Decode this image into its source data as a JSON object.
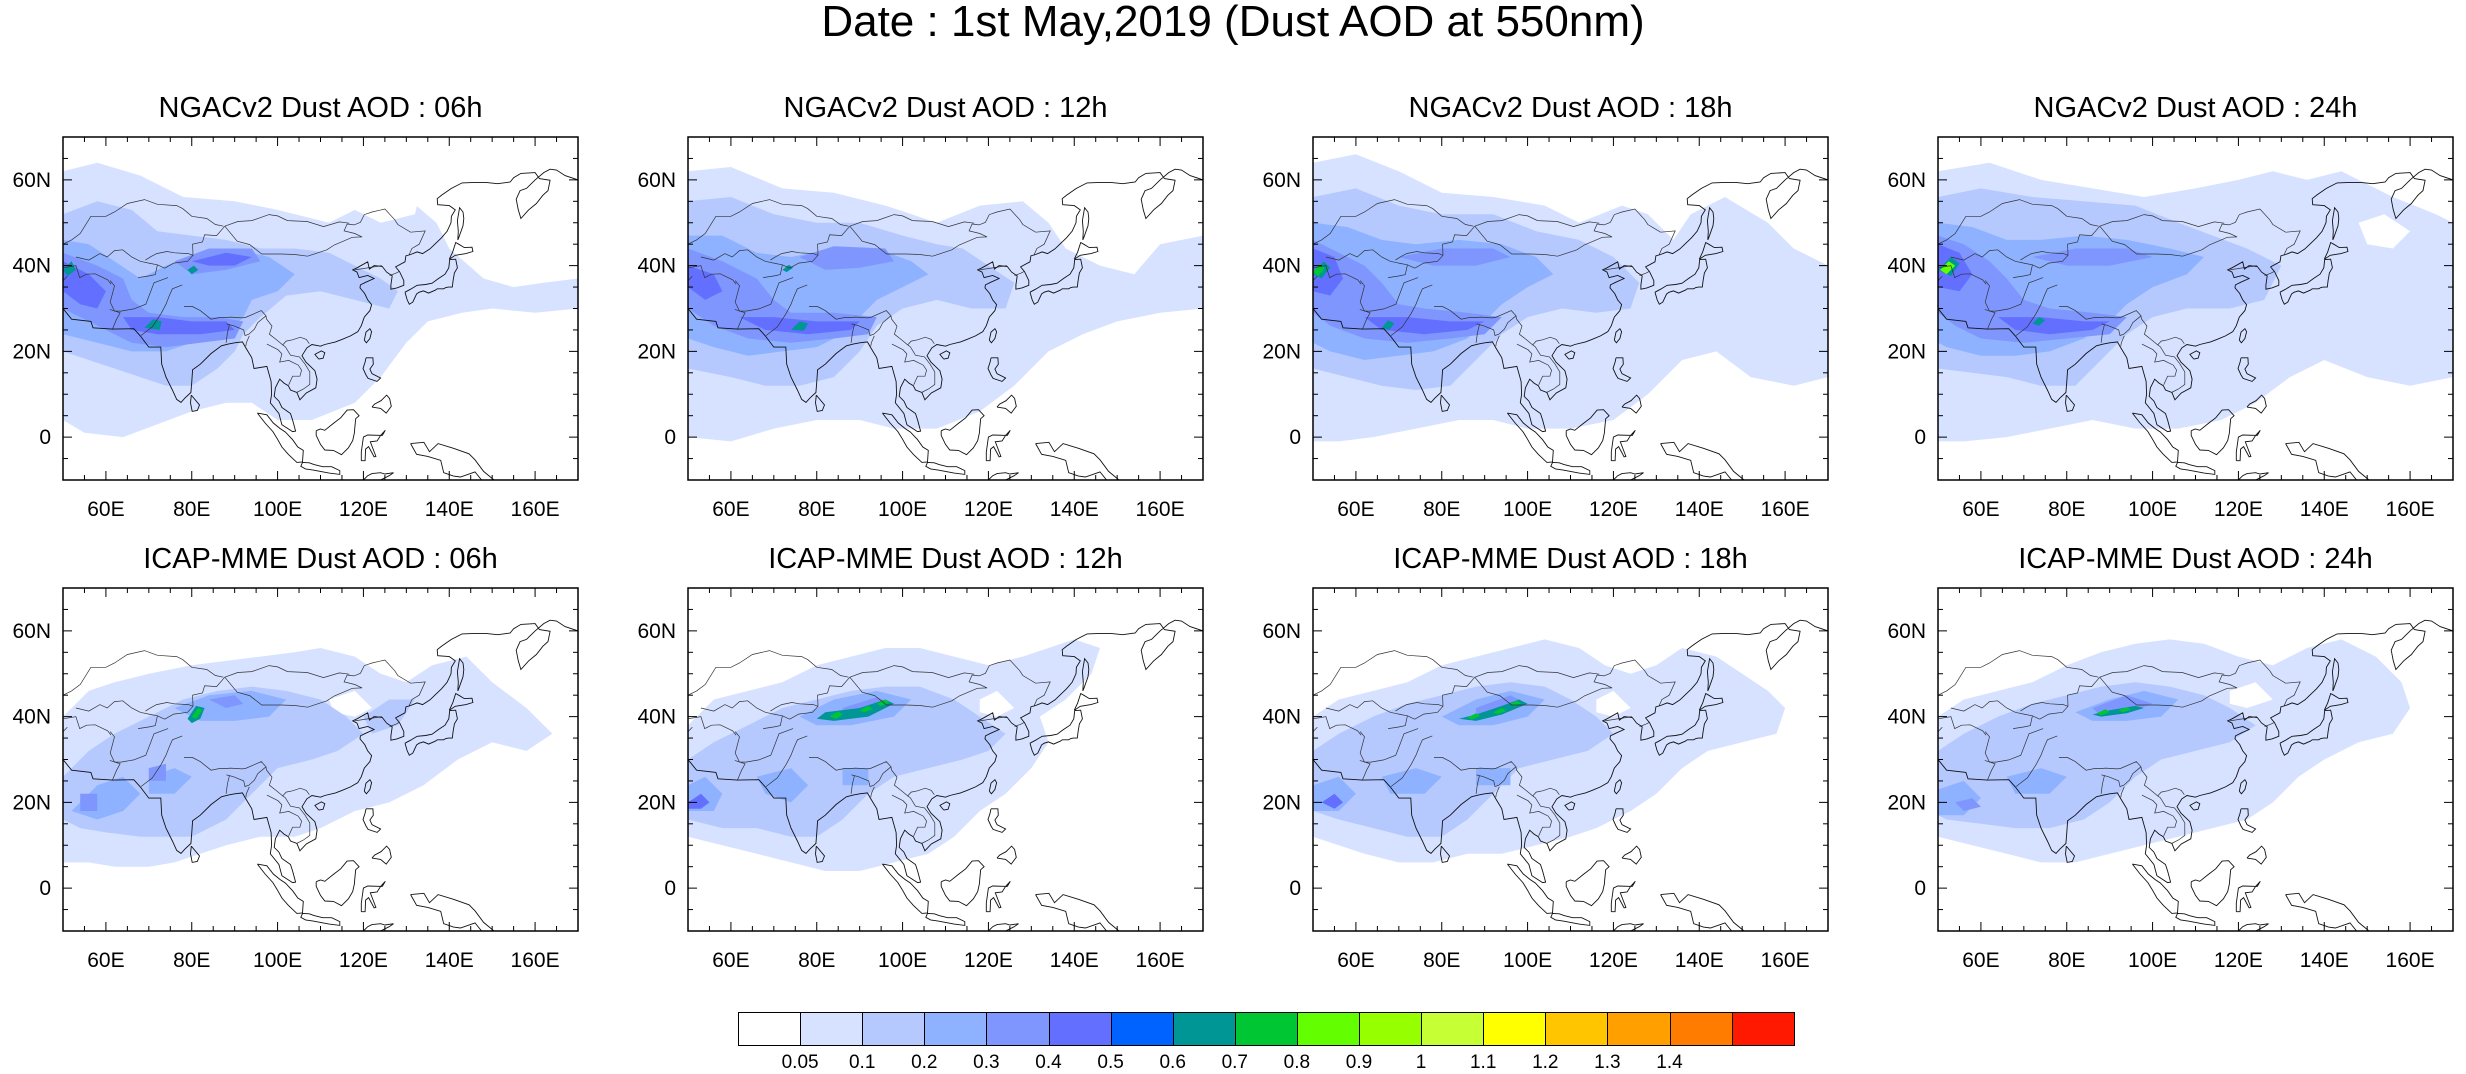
{
  "title": "Date : 1st May,2019 (Dust AOD at 550nm)",
  "panels": [
    {
      "title": "NGACv2 Dust AOD : 06h",
      "model": "NGACv2",
      "hour": "06h"
    },
    {
      "title": "NGACv2 Dust AOD : 12h",
      "model": "NGACv2",
      "hour": "12h"
    },
    {
      "title": "NGACv2 Dust AOD : 18h",
      "model": "NGACv2",
      "hour": "18h"
    },
    {
      "title": "NGACv2 Dust AOD : 24h",
      "model": "NGACv2",
      "hour": "24h"
    },
    {
      "title": "ICAP-MME Dust AOD : 06h",
      "model": "ICAP-MME",
      "hour": "06h"
    },
    {
      "title": "ICAP-MME Dust AOD : 12h",
      "model": "ICAP-MME",
      "hour": "12h"
    },
    {
      "title": "ICAP-MME Dust AOD : 18h",
      "model": "ICAP-MME",
      "hour": "18h"
    },
    {
      "title": "ICAP-MME Dust AOD : 24h",
      "model": "ICAP-MME",
      "hour": "24h"
    }
  ],
  "map": {
    "lon_range": [
      50,
      170
    ],
    "lat_range": [
      -10,
      70
    ],
    "x_ticks": [
      "60E",
      "80E",
      "100E",
      "120E",
      "140E",
      "160E"
    ],
    "x_tick_values": [
      60,
      80,
      100,
      120,
      140,
      160
    ],
    "y_ticks": [
      "0",
      "20N",
      "40N",
      "60N"
    ],
    "y_tick_values": [
      0,
      20,
      40,
      60
    ]
  },
  "colorbar": {
    "labels": [
      "0.05",
      "0.1",
      "0.2",
      "0.3",
      "0.4",
      "0.5",
      "0.6",
      "0.7",
      "0.8",
      "0.9",
      "1",
      "1.1",
      "1.2",
      "1.3",
      "1.4"
    ],
    "colors": [
      "#ffffff",
      "#d6e2ff",
      "#b5c9ff",
      "#8eb2ff",
      "#7f96ff",
      "#6370ff",
      "#0063ff",
      "#009696",
      "#00c633",
      "#63ff00",
      "#96ff00",
      "#c6ff33",
      "#ffff00",
      "#ffc600",
      "#ffa000",
      "#ff7c00",
      "#ff1900"
    ]
  }
}
